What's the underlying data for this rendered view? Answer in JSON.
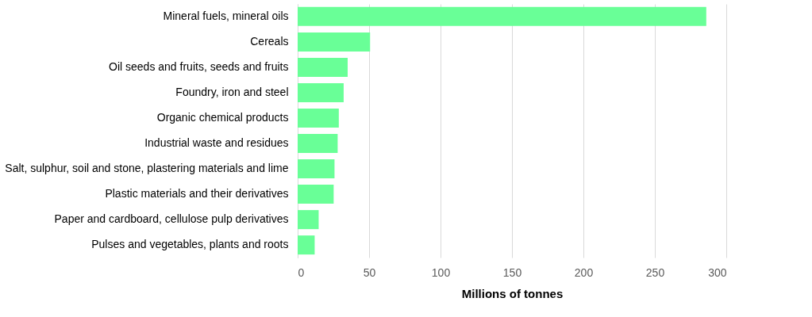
{
  "chart_data": {
    "type": "bar",
    "orientation": "horizontal",
    "xlabel": "Millions of tonnes",
    "categories": [
      "Mineral fuels, mineral oils",
      "Cereals",
      "Oil seeds and fruits, seeds and fruits",
      "Foundry, iron and steel",
      "Organic chemical products",
      "Industrial waste and residues",
      "Salt, sulphur, soil and stone, plastering materials and lime",
      "Plastic materials and their derivatives",
      "Paper and cardboard, cellulose pulp derivatives",
      "Pulses and vegetables, plants and roots"
    ],
    "values": [
      286,
      50.7,
      35,
      32.2,
      28.8,
      28,
      25.8,
      25.2,
      14.7,
      11.9
    ],
    "color": "#69ff97",
    "xlim": [
      0,
      300
    ],
    "xticks": [
      0,
      50,
      100,
      150,
      200,
      250,
      300
    ],
    "grid": "x"
  }
}
